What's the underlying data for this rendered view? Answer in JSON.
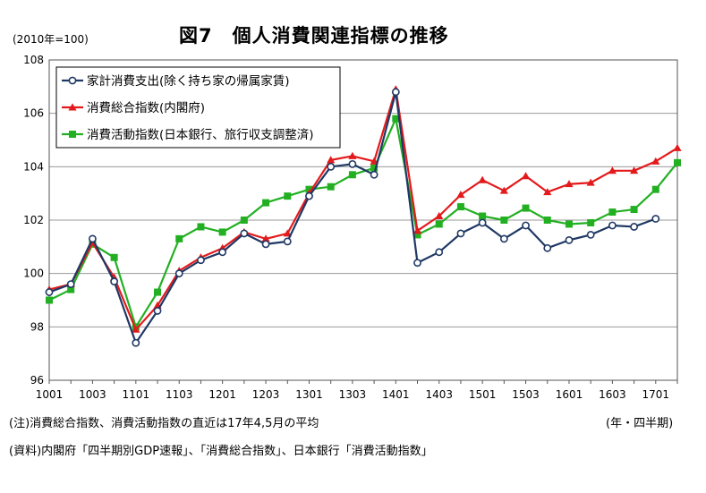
{
  "header": {
    "unit": "(2010年=100)",
    "title": "図7　個人消費関連指標の推移"
  },
  "footer": {
    "note": "(注)消費総合指数、消費活動指数の直近は17年4,5月の平均",
    "source": "(資料)内閣府「四半期別GDP速報」、「消費総合指数」、日本銀行「消費活動指数」",
    "x_unit": "(年・四半期)"
  },
  "colors": {
    "household": "#1f3864",
    "synthetic": "#e31a1c",
    "activity": "#22b022",
    "grid": "#999999",
    "axis": "#555555"
  },
  "chart_data": {
    "type": "line",
    "title": "図7　個人消費関連指標の推移",
    "ylabel": "(2010年=100)",
    "xlabel": "(年・四半期)",
    "ylim": [
      96,
      108
    ],
    "yticks": [
      96,
      98,
      100,
      102,
      104,
      106,
      108
    ],
    "grid": true,
    "legend_position": "top-left",
    "categories": [
      "1001",
      "1002",
      "1003",
      "1004",
      "1101",
      "1102",
      "1103",
      "1104",
      "1201",
      "1202",
      "1203",
      "1204",
      "1301",
      "1302",
      "1303",
      "1304",
      "1401",
      "1402",
      "1403",
      "1404",
      "1501",
      "1502",
      "1503",
      "1504",
      "1601",
      "1602",
      "1603",
      "1604",
      "1701",
      "1702"
    ],
    "tick_labels": [
      "1001",
      "1003",
      "1101",
      "1103",
      "1201",
      "1203",
      "1301",
      "1303",
      "1401",
      "1403",
      "1501",
      "1503",
      "1601",
      "1603",
      "1701"
    ],
    "series": [
      {
        "name": "家計消費支出(除く持ち家の帰属家賃)",
        "marker": "circle",
        "values": [
          99.3,
          99.6,
          101.3,
          99.7,
          97.4,
          98.6,
          100.0,
          100.5,
          100.8,
          101.5,
          101.1,
          101.2,
          102.9,
          104.0,
          104.1,
          103.7,
          106.8,
          100.4,
          100.8,
          101.5,
          101.9,
          101.3,
          101.8,
          100.95,
          101.25,
          101.45,
          101.8,
          101.75,
          102.05,
          null
        ]
      },
      {
        "name": "消費総合指数(内閣府)",
        "marker": "triangle",
        "values": [
          99.4,
          99.6,
          101.15,
          99.85,
          97.9,
          98.8,
          100.1,
          100.6,
          100.95,
          101.55,
          101.3,
          101.5,
          103.0,
          104.25,
          104.4,
          104.2,
          106.9,
          101.6,
          102.15,
          102.95,
          103.5,
          103.1,
          103.65,
          103.05,
          103.35,
          103.4,
          103.85,
          103.85,
          104.2,
          104.7
        ]
      },
      {
        "name": "消費活動指数(日本銀行、旅行収支調整済)",
        "marker": "square",
        "values": [
          99.0,
          99.4,
          101.1,
          100.6,
          98.0,
          99.3,
          101.3,
          101.75,
          101.55,
          102.0,
          102.65,
          102.9,
          103.15,
          103.25,
          103.7,
          103.95,
          105.8,
          101.45,
          101.85,
          102.5,
          102.15,
          102.0,
          102.45,
          102.0,
          101.85,
          101.9,
          102.3,
          102.4,
          103.15,
          104.15
        ]
      }
    ]
  }
}
